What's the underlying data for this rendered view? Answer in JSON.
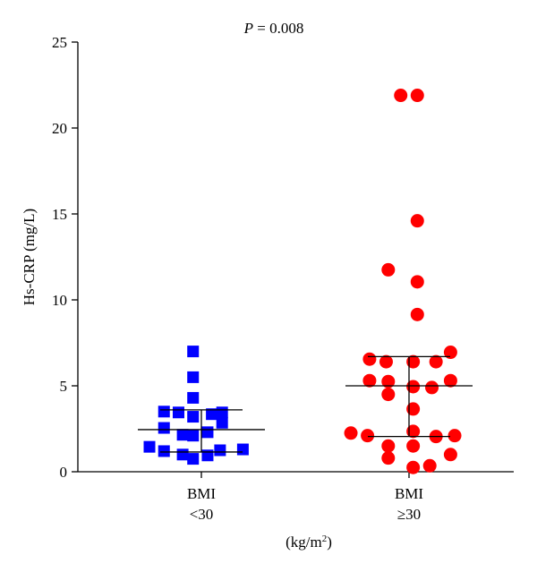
{
  "chart_data": {
    "type": "scatter",
    "subtype": "dot-plot",
    "annotation": {
      "italic": "P",
      "rest": " = 0.008"
    },
    "ylabel": "Hs-CRP (mg/L)",
    "xlabel": {
      "base": "(kg/m",
      "sup": "2",
      "close": ")"
    },
    "ylim": [
      0,
      25
    ],
    "yticks": [
      0,
      5,
      10,
      15,
      20,
      25
    ],
    "grid": false,
    "legend": "none",
    "categories": [
      {
        "line1": "BMI",
        "line2": "<30"
      },
      {
        "line1": "BMI",
        "line2": "≥30"
      }
    ],
    "series": [
      {
        "category": 0,
        "marker": "square",
        "color": "#0000ff",
        "median": 2.45,
        "q1": 1.15,
        "q3": 3.6,
        "points": [
          {
            "offset": -0.04,
            "y": 7.0
          },
          {
            "offset": -0.04,
            "y": 5.5
          },
          {
            "offset": -0.04,
            "y": 4.3
          },
          {
            "offset": -0.18,
            "y": 3.5
          },
          {
            "offset": -0.11,
            "y": 3.45
          },
          {
            "offset": 0.1,
            "y": 3.45
          },
          {
            "offset": 0.05,
            "y": 3.35
          },
          {
            "offset": -0.04,
            "y": 3.2
          },
          {
            "offset": 0.1,
            "y": 2.85
          },
          {
            "offset": -0.18,
            "y": 2.55
          },
          {
            "offset": 0.03,
            "y": 2.3
          },
          {
            "offset": -0.09,
            "y": 2.15
          },
          {
            "offset": -0.04,
            "y": 2.1
          },
          {
            "offset": -0.25,
            "y": 1.45
          },
          {
            "offset": 0.2,
            "y": 1.3
          },
          {
            "offset": 0.09,
            "y": 1.25
          },
          {
            "offset": -0.18,
            "y": 1.2
          },
          {
            "offset": -0.09,
            "y": 1.0
          },
          {
            "offset": 0.03,
            "y": 0.95
          },
          {
            "offset": -0.04,
            "y": 0.75
          }
        ]
      },
      {
        "category": 1,
        "marker": "circle",
        "color": "#ff0000",
        "median": 5.0,
        "q1": 2.05,
        "q3": 6.7,
        "points": [
          {
            "offset": -0.04,
            "y": 21.9
          },
          {
            "offset": 0.04,
            "y": 21.9
          },
          {
            "offset": 0.04,
            "y": 14.6
          },
          {
            "offset": -0.1,
            "y": 11.75
          },
          {
            "offset": 0.04,
            "y": 11.05
          },
          {
            "offset": 0.04,
            "y": 9.15
          },
          {
            "offset": 0.2,
            "y": 6.95
          },
          {
            "offset": -0.19,
            "y": 6.55
          },
          {
            "offset": -0.11,
            "y": 6.4
          },
          {
            "offset": 0.02,
            "y": 6.4
          },
          {
            "offset": 0.13,
            "y": 6.4
          },
          {
            "offset": -0.19,
            "y": 5.3
          },
          {
            "offset": -0.1,
            "y": 5.25
          },
          {
            "offset": 0.2,
            "y": 5.3
          },
          {
            "offset": 0.02,
            "y": 4.95
          },
          {
            "offset": 0.11,
            "y": 4.9
          },
          {
            "offset": -0.1,
            "y": 4.5
          },
          {
            "offset": 0.02,
            "y": 3.65
          },
          {
            "offset": 0.02,
            "y": 2.35
          },
          {
            "offset": -0.28,
            "y": 2.25
          },
          {
            "offset": -0.2,
            "y": 2.1
          },
          {
            "offset": 0.13,
            "y": 2.05
          },
          {
            "offset": 0.22,
            "y": 2.1
          },
          {
            "offset": -0.1,
            "y": 1.5
          },
          {
            "offset": 0.02,
            "y": 1.5
          },
          {
            "offset": 0.2,
            "y": 1.0
          },
          {
            "offset": -0.1,
            "y": 0.8
          },
          {
            "offset": 0.02,
            "y": 0.25
          },
          {
            "offset": 0.1,
            "y": 0.35
          }
        ]
      }
    ]
  }
}
